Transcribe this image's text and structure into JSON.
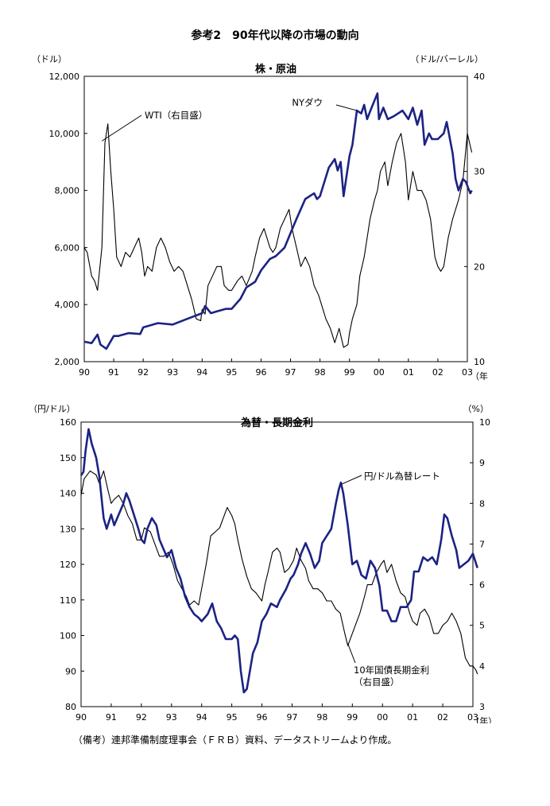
{
  "page_title": "参考2　90年代以降の市場の動向",
  "source_note": "（備考）連邦準備制度理事会（ＦＲＢ）資料、データストリームより作成。",
  "colors": {
    "primary_series": "#1c2383",
    "secondary_series": "#000000"
  },
  "chart_data": [
    {
      "type": "line",
      "title": "株・原油",
      "left_unit": "（ドル）",
      "right_unit": "（ドル/バーレル）",
      "x_unit": "（年",
      "x_ticks": [
        "90",
        "91",
        "92",
        "93",
        "94",
        "95",
        "96",
        "97",
        "98",
        "99",
        "00",
        "01",
        "02",
        "03"
      ],
      "xlim": [
        1990,
        2003
      ],
      "ylim_left": [
        2000,
        12000
      ],
      "ylim_right": [
        10,
        40
      ],
      "yticks_left": [
        "2,000",
        "4,000",
        "6,000",
        "8,000",
        "10,000",
        "12,000"
      ],
      "yticks_right": [
        "10",
        "20",
        "30",
        "40"
      ],
      "grid": false,
      "series": [
        {
          "name": "NYダウ",
          "axis": "left",
          "x": [
            1990.0,
            1990.25,
            1990.45,
            1990.55,
            1990.75,
            1991.0,
            1991.15,
            1991.5,
            1991.9,
            1992.0,
            1992.5,
            1993.0,
            1993.5,
            1994.0,
            1994.1,
            1994.3,
            1994.5,
            1994.8,
            1995.0,
            1995.3,
            1995.5,
            1995.8,
            1996.0,
            1996.3,
            1996.5,
            1996.8,
            1997.0,
            1997.2,
            1997.5,
            1997.8,
            1997.9,
            1998.0,
            1998.3,
            1998.5,
            1998.6,
            1998.7,
            1998.8,
            1999.0,
            1999.1,
            1999.25,
            1999.4,
            1999.5,
            1999.6,
            1999.75,
            1999.95,
            2000.0,
            2000.15,
            2000.3,
            2000.5,
            2000.8,
            2001.0,
            2001.15,
            2001.3,
            2001.45,
            2001.55,
            2001.7,
            2001.8,
            2002.0,
            2002.2,
            2002.3,
            2002.5,
            2002.6,
            2002.7,
            2002.85,
            2002.95,
            2003.1,
            2003.15
          ],
          "values": [
            2700,
            2650,
            2950,
            2600,
            2450,
            2900,
            2900,
            3000,
            2970,
            3200,
            3350,
            3300,
            3500,
            3700,
            3950,
            3700,
            3760,
            3850,
            3850,
            4200,
            4600,
            4800,
            5200,
            5600,
            5700,
            6000,
            6500,
            7000,
            7700,
            7900,
            7700,
            7800,
            8800,
            9100,
            8700,
            9000,
            7800,
            9200,
            9600,
            10800,
            10700,
            11000,
            10500,
            10900,
            11400,
            10500,
            10900,
            10500,
            10600,
            10800,
            10500,
            10900,
            10300,
            10800,
            9600,
            10000,
            9800,
            9800,
            10000,
            10400,
            9300,
            8400,
            8000,
            8400,
            8300,
            7900,
            8000
          ]
        },
        {
          "name": "WTI（右目盛）",
          "axis": "right",
          "x": [
            1990.0,
            1990.1,
            1990.25,
            1990.35,
            1990.45,
            1990.6,
            1990.7,
            1990.8,
            1990.9,
            1991.0,
            1991.1,
            1991.25,
            1991.4,
            1991.55,
            1991.7,
            1991.85,
            1991.95,
            1992.05,
            1992.15,
            1992.3,
            1992.45,
            1992.6,
            1992.75,
            1992.9,
            1993.05,
            1993.2,
            1993.35,
            1993.5,
            1993.65,
            1993.8,
            1993.95,
            1994.0,
            1994.1,
            1994.2,
            1994.35,
            1994.5,
            1994.65,
            1994.75,
            1994.9,
            1995.0,
            1995.2,
            1995.35,
            1995.5,
            1995.7,
            1995.8,
            1995.95,
            1996.1,
            1996.2,
            1996.3,
            1996.4,
            1996.5,
            1996.65,
            1996.8,
            1996.95,
            1997.05,
            1997.2,
            1997.35,
            1997.5,
            1997.65,
            1997.8,
            1997.95,
            1998.05,
            1998.2,
            1998.35,
            1998.5,
            1998.65,
            1998.8,
            1998.95,
            1999.0,
            1999.1,
            1999.25,
            1999.35,
            1999.5,
            1999.6,
            1999.7,
            1999.85,
            1999.95,
            2000.05,
            2000.2,
            2000.3,
            2000.45,
            2000.6,
            2000.75,
            2000.9,
            2001.0,
            2001.15,
            2001.3,
            2001.45,
            2001.6,
            2001.75,
            2001.9,
            2002.0,
            2002.1,
            2002.2,
            2002.35,
            2002.5,
            2002.7,
            2002.85,
            2003.0,
            2003.15
          ],
          "values": [
            22,
            21.5,
            19,
            18.5,
            17.5,
            22,
            33,
            35,
            30,
            26,
            21,
            20,
            21.5,
            21,
            22,
            23,
            21.5,
            19,
            20,
            19.5,
            22,
            23,
            22,
            20.5,
            19.5,
            20,
            19.5,
            18,
            16.5,
            14.5,
            14.3,
            15.5,
            15,
            18,
            19,
            20,
            20,
            18,
            17.5,
            17.5,
            18.5,
            19,
            18,
            19.5,
            21,
            23,
            24,
            23,
            22,
            21.5,
            22,
            24,
            25,
            26,
            24,
            22,
            20,
            21,
            20,
            18,
            17,
            16,
            14.5,
            13.5,
            12,
            13.5,
            11.5,
            11.8,
            13,
            14.5,
            16,
            19,
            21,
            23,
            25,
            27,
            28,
            30,
            31,
            28.5,
            31,
            33,
            34,
            31,
            27,
            30,
            28,
            28,
            27,
            25,
            21,
            20,
            19.5,
            20,
            23,
            25,
            27,
            29,
            34,
            32
          ]
        }
      ]
    },
    {
      "type": "line",
      "title": "為替・長期金利",
      "left_unit": "（円/ドル）",
      "right_unit": "（%）",
      "x_unit": "(年）",
      "x_ticks": [
        "90",
        "91",
        "92",
        "93",
        "94",
        "95",
        "96",
        "97",
        "98",
        "99",
        "00",
        "01",
        "02",
        "03"
      ],
      "xlim": [
        1990,
        2003
      ],
      "ylim_left": [
        80,
        160
      ],
      "ylim_right": [
        3,
        10
      ],
      "yticks_left": [
        "80",
        "90",
        "100",
        "110",
        "120",
        "130",
        "140",
        "150",
        "160"
      ],
      "yticks_right": [
        "3",
        "4",
        "5",
        "6",
        "7",
        "8",
        "9",
        "10"
      ],
      "grid": false,
      "series": [
        {
          "name": "円/ドル為替レート",
          "axis": "left",
          "x": [
            1990.0,
            1990.08,
            1990.15,
            1990.25,
            1990.35,
            1990.5,
            1990.6,
            1990.75,
            1990.85,
            1991.0,
            1991.1,
            1991.25,
            1991.4,
            1991.5,
            1991.6,
            1991.75,
            1991.9,
            1992.0,
            1992.1,
            1992.2,
            1992.35,
            1992.5,
            1992.6,
            1992.75,
            1992.85,
            1993.0,
            1993.15,
            1993.3,
            1993.45,
            1993.6,
            1993.75,
            1993.9,
            1994.0,
            1994.2,
            1994.35,
            1994.5,
            1994.65,
            1994.8,
            1994.9,
            1995.0,
            1995.1,
            1995.2,
            1995.3,
            1995.4,
            1995.5,
            1995.6,
            1995.7,
            1995.85,
            1996.0,
            1996.15,
            1996.3,
            1996.5,
            1996.6,
            1996.8,
            1996.95,
            1997.05,
            1997.2,
            1997.3,
            1997.45,
            1997.6,
            1997.75,
            1997.9,
            1998.0,
            1998.15,
            1998.3,
            1998.45,
            1998.55,
            1998.62,
            1998.7,
            1998.85,
            1999.0,
            1999.15,
            1999.3,
            1999.45,
            1999.6,
            1999.75,
            1999.9,
            2000.0,
            2000.15,
            2000.3,
            2000.45,
            2000.6,
            2000.8,
            2000.95,
            2001.05,
            2001.2,
            2001.35,
            2001.5,
            2001.65,
            2001.8,
            2001.95,
            2002.05,
            2002.15,
            2002.3,
            2002.45,
            2002.55,
            2002.7,
            2002.85,
            2003.0,
            2003.15
          ],
          "values": [
            145,
            146,
            152,
            158,
            154,
            150,
            145,
            133,
            130,
            134,
            131,
            134,
            137,
            140,
            138,
            134,
            130,
            127,
            126,
            130,
            133,
            131,
            127,
            124,
            122,
            124,
            119,
            116,
            111,
            108,
            106,
            105,
            104,
            106,
            109,
            104,
            102,
            99,
            99,
            99,
            100,
            99,
            90,
            84,
            85,
            90,
            95,
            98,
            104,
            106,
            109,
            108,
            110,
            113,
            116,
            117,
            120,
            123,
            126,
            123,
            119,
            121,
            126,
            128,
            130,
            137,
            141,
            143,
            140,
            131,
            120,
            121,
            117,
            116,
            121,
            119,
            114,
            107,
            107,
            104,
            104,
            108,
            108,
            110,
            118,
            118,
            122,
            121,
            122,
            120,
            127,
            134,
            133,
            128,
            124,
            119,
            120,
            121,
            123,
            119
          ]
        },
        {
          "name": "10年国債長期金利（右目盛）",
          "axis": "right",
          "x": [
            1990.0,
            1990.1,
            1990.3,
            1990.5,
            1990.6,
            1990.75,
            1990.9,
            1991.0,
            1991.1,
            1991.25,
            1991.4,
            1991.55,
            1991.7,
            1991.85,
            1992.0,
            1992.1,
            1992.3,
            1992.45,
            1992.6,
            1992.75,
            1992.9,
            1993.05,
            1993.2,
            1993.35,
            1993.5,
            1993.6,
            1993.75,
            1993.9,
            1994.0,
            1994.15,
            1994.3,
            1994.45,
            1994.6,
            1994.75,
            1994.85,
            1995.0,
            1995.1,
            1995.2,
            1995.35,
            1995.5,
            1995.65,
            1995.8,
            1995.9,
            1996.0,
            1996.1,
            1996.2,
            1996.35,
            1996.5,
            1996.6,
            1996.75,
            1996.9,
            1997.05,
            1997.15,
            1997.3,
            1997.45,
            1997.55,
            1997.7,
            1997.85,
            1998.0,
            1998.15,
            1998.3,
            1998.45,
            1998.6,
            1998.75,
            1998.85,
            1998.95,
            1999.1,
            1999.25,
            1999.4,
            1999.5,
            1999.65,
            1999.8,
            1999.95,
            2000.05,
            2000.15,
            2000.3,
            2000.45,
            2000.6,
            2000.75,
            2000.9,
            2001.0,
            2001.15,
            2001.25,
            2001.4,
            2001.55,
            2001.7,
            2001.85,
            2002.0,
            2002.15,
            2002.3,
            2002.45,
            2002.6,
            2002.75,
            2002.9,
            2003.0,
            2003.1,
            2003.15
          ],
          "values": [
            8.2,
            8.6,
            8.8,
            8.7,
            8.5,
            8.8,
            8.3,
            8.0,
            8.1,
            8.2,
            8.0,
            7.7,
            7.5,
            7.1,
            7.1,
            7.4,
            7.3,
            7.0,
            6.7,
            6.7,
            6.8,
            6.5,
            6.1,
            5.9,
            5.7,
            5.5,
            5.6,
            5.5,
            5.9,
            6.5,
            7.2,
            7.3,
            7.4,
            7.7,
            7.9,
            7.7,
            7.5,
            7.1,
            6.6,
            6.2,
            5.9,
            5.8,
            5.7,
            5.6,
            6.0,
            6.3,
            6.8,
            6.9,
            6.8,
            6.3,
            6.4,
            6.6,
            6.9,
            6.6,
            6.4,
            6.1,
            5.9,
            5.9,
            5.8,
            5.6,
            5.6,
            5.4,
            5.3,
            4.8,
            4.5,
            4.7,
            5.0,
            5.3,
            5.7,
            6.0,
            6.0,
            6.3,
            6.5,
            6.6,
            6.3,
            6.5,
            6.1,
            5.8,
            5.7,
            5.3,
            5.1,
            5.0,
            5.3,
            5.4,
            5.2,
            4.8,
            4.8,
            5.0,
            5.1,
            5.3,
            5.1,
            4.8,
            4.2,
            4.0,
            4.0,
            3.9,
            3.8
          ]
        }
      ]
    }
  ]
}
